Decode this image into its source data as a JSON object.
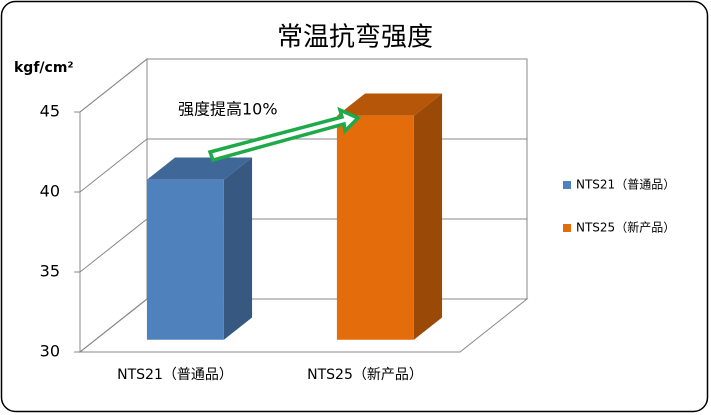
{
  "chart_data": {
    "type": "bar3d",
    "title": "常温抗弯强度",
    "y_label": "kgf/cm²",
    "categories": [
      "NTS21（普通品）",
      "NTS25（新产品）"
    ],
    "values": [
      40,
      44
    ],
    "colors": [
      "#4f81bd",
      "#e46c0a"
    ],
    "ylim": [
      30,
      45
    ],
    "yticks": [
      30,
      35,
      40,
      45
    ],
    "grid": true,
    "annotation": "强度提高10%",
    "legend": "right"
  }
}
